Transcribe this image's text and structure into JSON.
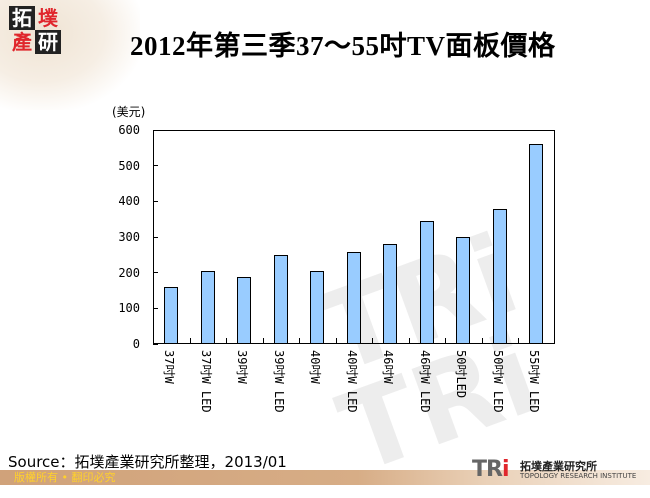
{
  "header": {
    "logo_chars": [
      "拓",
      "墣",
      "產",
      "研"
    ],
    "title": "2012年第三季37～55吋TV面板價格"
  },
  "chart_data": {
    "type": "bar",
    "title": "2012年第三季37～55吋TV面板價格",
    "xlabel": "",
    "ylabel": "(美元)",
    "ylim": [
      0,
      600
    ],
    "yticks": [
      0,
      100,
      200,
      300,
      400,
      500,
      600
    ],
    "grid": false,
    "legend": null,
    "bar_color": "#99ccff",
    "categories": [
      "37吋W",
      "37吋W LED",
      "39吋W",
      "39吋W LED",
      "40吋W",
      "40吋W LED",
      "46吋W",
      "46吋W LED",
      "50吋LED",
      "50吋W LED",
      "55吋W LED"
    ],
    "values": [
      160,
      205,
      188,
      250,
      205,
      258,
      281,
      346,
      300,
      379,
      561
    ]
  },
  "chart_labels": {
    "unit": "(美元)",
    "yticks": [
      "600",
      "500",
      "400",
      "300",
      "200",
      "100",
      "0"
    ]
  },
  "footer": {
    "source": "Source：拓墣產業研究所整理，2013/01",
    "copyright": "版權所有 • 翻印必究",
    "tri_logo": "TRi",
    "org_cn": "拓墣產業研究所",
    "org_en": "TOPOLOGY RESEARCH INSTITUTE"
  }
}
